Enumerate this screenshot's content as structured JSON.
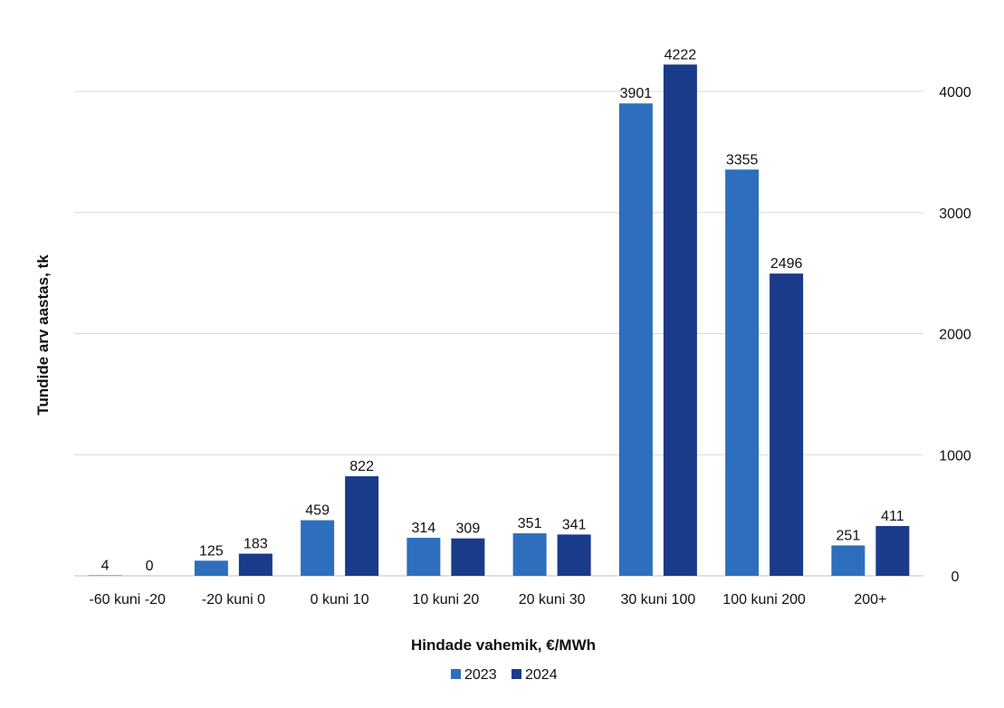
{
  "chart_data": {
    "type": "bar",
    "categories": [
      "-60 kuni -20",
      "-20 kuni 0",
      "0 kuni 10",
      "10 kuni 20",
      "20 kuni 30",
      "30 kuni 100",
      "100 kuni 200",
      "200+"
    ],
    "series": [
      {
        "name": "2023",
        "color": "#2e6fbd",
        "values": [
          4,
          125,
          459,
          314,
          351,
          3901,
          3355,
          251
        ]
      },
      {
        "name": "2024",
        "color": "#1a3a8a",
        "values": [
          0,
          183,
          822,
          309,
          341,
          4222,
          2496,
          411
        ]
      }
    ],
    "xlabel": "Hindade vahemik, €/MWh",
    "ylabel": "Tundide arv aastas, tk",
    "ylim": [
      0,
      4000
    ],
    "yticks": [
      "0",
      "1000",
      "2000",
      "3000",
      "4000"
    ],
    "y_axis_side": "right",
    "grid": true,
    "legend_position": "bottom-center"
  }
}
